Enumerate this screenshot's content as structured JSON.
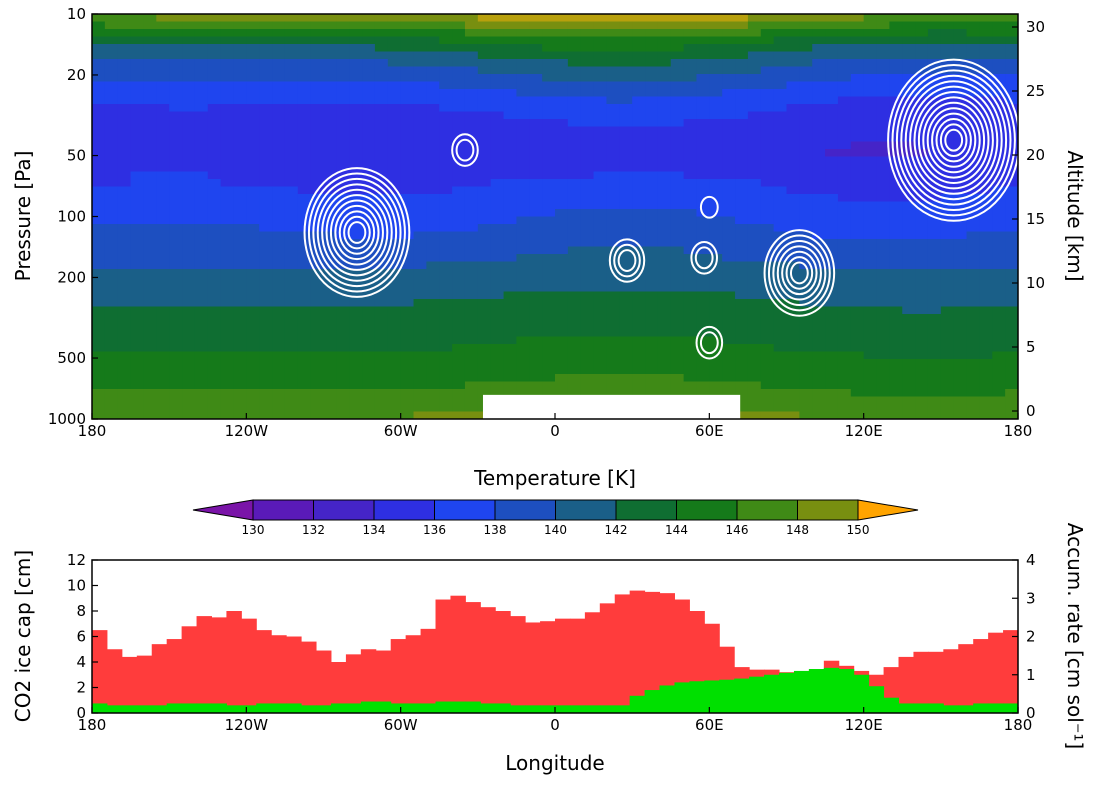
{
  "chart_data": [
    {
      "type": "heatmap",
      "overlay": "contour",
      "x_axis": {
        "ticks": [
          "180",
          "120W",
          "60W",
          "0",
          "60E",
          "120E",
          "180"
        ],
        "tick_values": [
          -180,
          -120,
          -60,
          0,
          60,
          120,
          180
        ],
        "range": [
          -180,
          180
        ]
      },
      "y_axis": {
        "label": "Pressure [Pa]",
        "scale": "log",
        "direction": "decreasing-upward",
        "ticks": [
          "10",
          "20",
          "50",
          "100",
          "200",
          "500",
          "1000"
        ],
        "tick_values": [
          10,
          20,
          50,
          100,
          200,
          500,
          1000
        ],
        "range": [
          1000,
          10
        ]
      },
      "y2_axis": {
        "label": "Altitude [km]",
        "ticks": [
          "0",
          "5",
          "10",
          "15",
          "20",
          "25",
          "30"
        ],
        "tick_values": [
          0,
          5,
          10,
          15,
          20,
          25,
          30
        ]
      },
      "colorbar": {
        "label": "Temperature [K]",
        "levels": [
          130,
          132,
          134,
          136,
          138,
          140,
          142,
          144,
          146,
          148,
          150
        ],
        "colors": [
          "#7a14a8",
          "#5a1ab8",
          "#4524c8",
          "#2e2fe2",
          "#1f45ef",
          "#1d4fc0",
          "#1a5f88",
          "#0f6e32",
          "#157a1a",
          "#3f8a16",
          "#788f10",
          "#b8a00c",
          "#ffa400"
        ]
      },
      "temperature_profile": [
        {
          "p": 1000,
          "t": 148.5
        },
        {
          "p": 850,
          "t": 147
        },
        {
          "p": 700,
          "t": 146
        },
        {
          "p": 560,
          "t": 145
        },
        {
          "p": 450,
          "t": 144
        },
        {
          "p": 340,
          "t": 143
        },
        {
          "p": 260,
          "t": 142
        },
        {
          "p": 190,
          "t": 140.5
        },
        {
          "p": 140,
          "t": 139
        },
        {
          "p": 100,
          "t": 137.5
        },
        {
          "p": 70,
          "t": 136
        },
        {
          "p": 50,
          "t": 134.5
        },
        {
          "p": 35,
          "t": 135
        },
        {
          "p": 25,
          "t": 137
        },
        {
          "p": 18,
          "t": 140
        },
        {
          "p": 14,
          "t": 143
        },
        {
          "p": 12,
          "t": 146
        },
        {
          "p": 11,
          "t": 148
        },
        {
          "p": 10,
          "t": 150
        }
      ],
      "contour_centers": [
        {
          "lon": -77,
          "p": 120,
          "rings": 11
        },
        {
          "lon": -35,
          "p": 47,
          "rings": 2
        },
        {
          "lon": 28,
          "p": 165,
          "rings": 3
        },
        {
          "lon": 58,
          "p": 160,
          "rings": 2
        },
        {
          "lon": 60,
          "p": 90,
          "rings": 1
        },
        {
          "lon": 60,
          "p": 420,
          "rings": 2
        },
        {
          "lon": 95,
          "p": 190,
          "rings": 7
        },
        {
          "lon": 155,
          "p": 42,
          "rings": 14
        }
      ],
      "missing_region": {
        "lon_start": -28,
        "lon_end": 72,
        "p_start": 760,
        "p_end": 1000
      }
    },
    {
      "type": "bar",
      "x_axis": {
        "label": "Longitude",
        "ticks": [
          "180",
          "120W",
          "60W",
          "0",
          "60E",
          "120E",
          "180"
        ],
        "tick_values": [
          -180,
          -120,
          -60,
          0,
          60,
          120,
          180
        ],
        "range": [
          -180,
          180
        ]
      },
      "y_axis": {
        "label": "CO2 ice cap [cm]",
        "ticks": [
          "0",
          "2",
          "4",
          "6",
          "8",
          "10",
          "12"
        ],
        "tick_values": [
          0,
          2,
          4,
          6,
          8,
          10,
          12
        ],
        "range": [
          0,
          12
        ]
      },
      "y2_axis": {
        "label": "Accum. rate [cm sol⁻¹]",
        "ticks": [
          "0",
          "1",
          "2",
          "3",
          "4"
        ],
        "tick_values": [
          0,
          1,
          2,
          3,
          4
        ],
        "range": [
          0,
          4
        ]
      },
      "bin_width_deg": 5,
      "series": [
        {
          "color": "#ff3c3c",
          "values": [
            6.5,
            5.0,
            4.4,
            4.5,
            5.4,
            5.8,
            6.8,
            7.6,
            7.5,
            8.0,
            7.4,
            6.5,
            6.1,
            6.0,
            5.6,
            4.9,
            4.0,
            4.6,
            5.0,
            4.9,
            5.8,
            6.1,
            6.6,
            8.9,
            9.2,
            8.7,
            8.3,
            8.0,
            7.6,
            7.1,
            7.2,
            7.4,
            7.4,
            7.9,
            8.6,
            9.3,
            9.6,
            9.5,
            9.4,
            8.9,
            8.0,
            7.0,
            5.2,
            3.6,
            3.4,
            3.4,
            3.2,
            3.0,
            3.4,
            4.1,
            3.7,
            3.3,
            3.0,
            3.6,
            4.4,
            4.8,
            4.8,
            5.0,
            5.4,
            5.8,
            6.3,
            6.5
          ]
        },
        {
          "color": "#00e000",
          "values": [
            0.25,
            0.2,
            0.2,
            0.2,
            0.2,
            0.25,
            0.25,
            0.25,
            0.25,
            0.2,
            0.2,
            0.25,
            0.25,
            0.25,
            0.2,
            0.2,
            0.25,
            0.25,
            0.3,
            0.3,
            0.25,
            0.25,
            0.25,
            0.3,
            0.3,
            0.3,
            0.25,
            0.25,
            0.2,
            0.2,
            0.2,
            0.2,
            0.2,
            0.2,
            0.2,
            0.2,
            0.45,
            0.6,
            0.72,
            0.8,
            0.83,
            0.85,
            0.87,
            0.9,
            0.95,
            1.0,
            1.05,
            1.1,
            1.15,
            1.18,
            1.15,
            1.0,
            0.7,
            0.4,
            0.25,
            0.25,
            0.25,
            0.2,
            0.2,
            0.25,
            0.25,
            0.25
          ]
        }
      ]
    }
  ]
}
